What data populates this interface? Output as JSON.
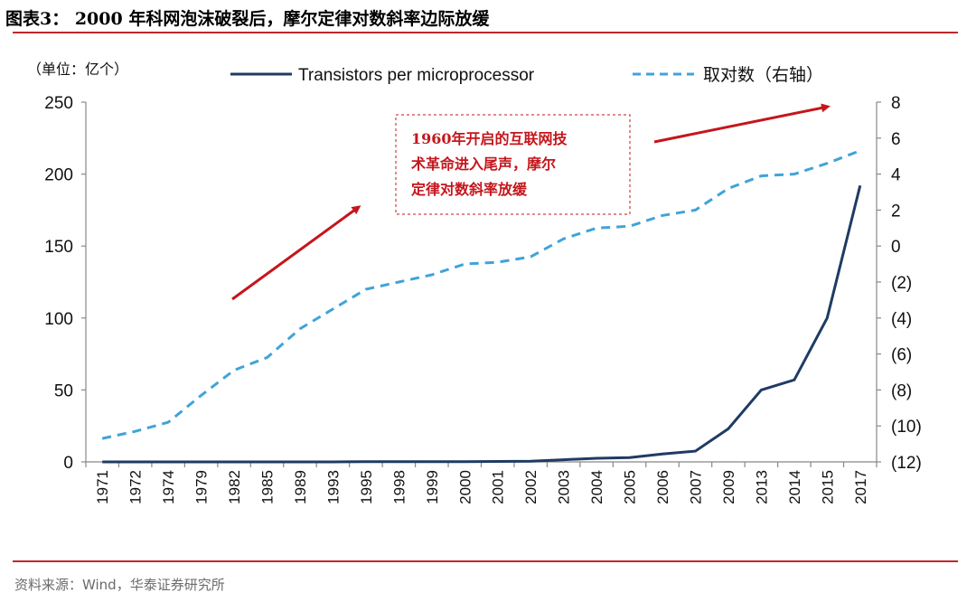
{
  "figure": {
    "title": "图表3： 2000 年科网泡沫破裂后，摩尔定律对数斜率边际放缓",
    "source": "资料来源：Wind，华泰证券研究所"
  },
  "colors": {
    "accent_red": "#c0262d",
    "series_solid": "#1f3b63",
    "series_dashed": "#3fa4d8",
    "arrow": "#c4161c"
  },
  "chart_data": {
    "type": "line",
    "unit_label": "（单位：亿个）",
    "categories": [
      "1971",
      "1972",
      "1974",
      "1979",
      "1982",
      "1985",
      "1989",
      "1993",
      "1995",
      "1998",
      "1999",
      "2000",
      "2001",
      "2002",
      "2003",
      "2004",
      "2005",
      "2006",
      "2007",
      "2009",
      "2013",
      "2014",
      "2015",
      "2017"
    ],
    "series": [
      {
        "name": "Transistors per microprocessor",
        "axis": "left",
        "style": "solid",
        "values": [
          0,
          0,
          0,
          0,
          0,
          0,
          0,
          0,
          0.1,
          0.1,
          0.1,
          0.2,
          0.3,
          0.5,
          1.5,
          2.5,
          3,
          5.5,
          7.5,
          23,
          50,
          57,
          100,
          192
        ]
      },
      {
        "name": "取对数（右轴）",
        "axis": "right",
        "style": "dashed",
        "values": [
          -10.7,
          -10.3,
          -9.8,
          -8.3,
          -6.9,
          -6.2,
          -4.6,
          -3.5,
          -2.4,
          -2.0,
          -1.6,
          -1.0,
          -0.9,
          -0.6,
          0.4,
          1.0,
          1.1,
          1.7,
          2.0,
          3.2,
          3.9,
          4.0,
          4.6,
          5.3
        ]
      }
    ],
    "y_left": {
      "min": 0,
      "max": 250,
      "ticks": [
        "0",
        "50",
        "100",
        "150",
        "200",
        "250"
      ]
    },
    "y_right": {
      "min": -12,
      "max": 8,
      "ticks": [
        "(12)",
        "(10)",
        "(8)",
        "(6)",
        "(4)",
        "(2)",
        "0",
        "2",
        "4",
        "6",
        "8"
      ]
    },
    "legend_position": "top",
    "grid": false,
    "annotation": {
      "lines": [
        "1960年开启的互联网技",
        "术革命进入尾声，摩尔",
        "定律对数斜率放缓"
      ]
    }
  }
}
